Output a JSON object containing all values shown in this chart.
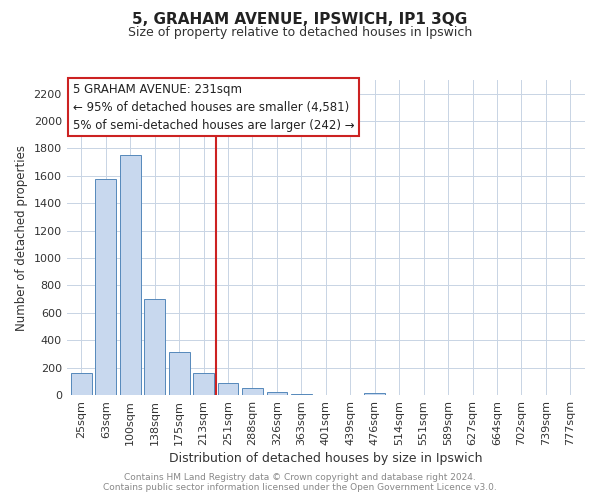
{
  "title": "5, GRAHAM AVENUE, IPSWICH, IP1 3QG",
  "subtitle": "Size of property relative to detached houses in Ipswich",
  "xlabel": "Distribution of detached houses by size in Ipswich",
  "ylabel": "Number of detached properties",
  "bar_labels": [
    "25sqm",
    "63sqm",
    "100sqm",
    "138sqm",
    "175sqm",
    "213sqm",
    "251sqm",
    "288sqm",
    "326sqm",
    "363sqm",
    "401sqm",
    "439sqm",
    "476sqm",
    "514sqm",
    "551sqm",
    "589sqm",
    "627sqm",
    "664sqm",
    "702sqm",
    "739sqm",
    "777sqm"
  ],
  "bar_values": [
    160,
    1580,
    1750,
    700,
    315,
    160,
    85,
    50,
    25,
    10,
    0,
    0,
    15,
    0,
    0,
    0,
    0,
    0,
    0,
    0,
    0
  ],
  "bar_fill_color": "#c8d8ee",
  "bar_edge_color": "#5588bb",
  "vline_x": 6,
  "vline_color": "#cc2222",
  "ylim": [
    0,
    2300
  ],
  "yticks": [
    0,
    200,
    400,
    600,
    800,
    1000,
    1200,
    1400,
    1600,
    1800,
    2000,
    2200
  ],
  "annotation_title": "5 GRAHAM AVENUE: 231sqm",
  "annotation_line1": "← 95% of detached houses are smaller (4,581)",
  "annotation_line2": "5% of semi-detached houses are larger (242) →",
  "footer_line1": "Contains HM Land Registry data © Crown copyright and database right 2024.",
  "footer_line2": "Contains public sector information licensed under the Open Government Licence v3.0.",
  "grid_color": "#c8d4e4",
  "background_color": "#ffffff",
  "title_fontsize": 11,
  "subtitle_fontsize": 9,
  "annotation_fontsize": 8.5,
  "ylabel_fontsize": 8.5,
  "xlabel_fontsize": 9,
  "tick_fontsize": 8,
  "footer_fontsize": 6.5
}
